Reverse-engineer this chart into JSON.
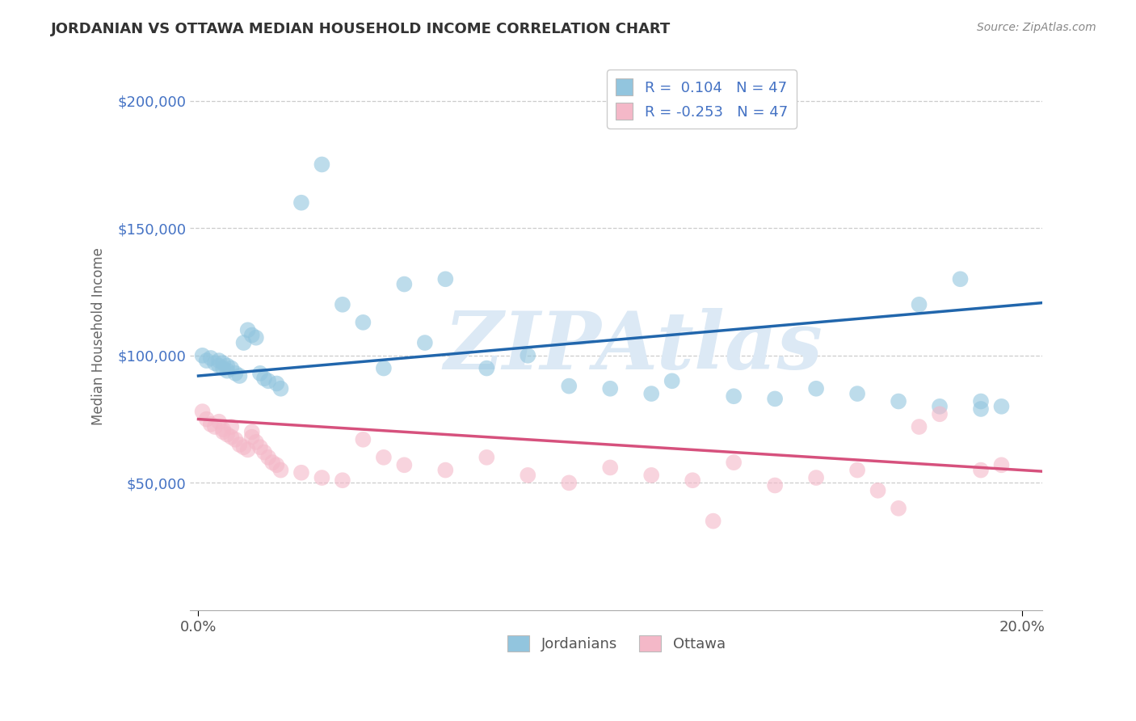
{
  "title": "JORDANIAN VS OTTAWA MEDIAN HOUSEHOLD INCOME CORRELATION CHART",
  "source": "Source: ZipAtlas.com",
  "ylabel": "Median Household Income",
  "xlim": [
    -0.002,
    0.205
  ],
  "ylim": [
    0,
    215000
  ],
  "xticks": [
    0.0,
    0.2
  ],
  "xticklabels": [
    "0.0%",
    "20.0%"
  ],
  "yticks": [
    50000,
    100000,
    150000,
    200000
  ],
  "yticklabels": [
    "$50,000",
    "$100,000",
    "$150,000",
    "$200,000"
  ],
  "r_jordanian": 0.104,
  "r_ottawa": -0.253,
  "n": 47,
  "blue_color": "#92c5de",
  "pink_color": "#f4b8c8",
  "trend_blue": "#2166ac",
  "trend_pink": "#d6517d",
  "ytick_color": "#4472c4",
  "watermark": "ZIPAtlas",
  "watermark_color": "#dce9f5",
  "background_color": "#ffffff",
  "grid_color": "#cccccc",
  "blue_trend_intercept": 92000,
  "blue_trend_slope": 140000,
  "pink_trend_intercept": 75000,
  "pink_trend_slope": -100000,
  "blue_scatter_x": [
    0.001,
    0.002,
    0.003,
    0.004,
    0.005,
    0.005,
    0.006,
    0.006,
    0.007,
    0.007,
    0.008,
    0.009,
    0.01,
    0.011,
    0.012,
    0.013,
    0.014,
    0.015,
    0.016,
    0.017,
    0.019,
    0.02,
    0.025,
    0.03,
    0.035,
    0.04,
    0.045,
    0.05,
    0.055,
    0.06,
    0.07,
    0.08,
    0.09,
    0.1,
    0.11,
    0.115,
    0.13,
    0.14,
    0.15,
    0.16,
    0.17,
    0.18,
    0.185,
    0.19,
    0.195,
    0.19,
    0.175
  ],
  "blue_scatter_y": [
    100000,
    98000,
    99000,
    97000,
    96000,
    98000,
    95000,
    97000,
    96000,
    94000,
    95000,
    93000,
    92000,
    105000,
    110000,
    108000,
    107000,
    93000,
    91000,
    90000,
    89000,
    87000,
    160000,
    175000,
    120000,
    113000,
    95000,
    128000,
    105000,
    130000,
    95000,
    100000,
    88000,
    87000,
    85000,
    90000,
    84000,
    83000,
    87000,
    85000,
    82000,
    80000,
    130000,
    82000,
    80000,
    79000,
    120000
  ],
  "pink_scatter_x": [
    0.001,
    0.002,
    0.003,
    0.004,
    0.005,
    0.006,
    0.006,
    0.007,
    0.008,
    0.008,
    0.009,
    0.01,
    0.011,
    0.012,
    0.013,
    0.013,
    0.014,
    0.015,
    0.016,
    0.017,
    0.018,
    0.019,
    0.02,
    0.025,
    0.03,
    0.035,
    0.04,
    0.045,
    0.05,
    0.06,
    0.07,
    0.08,
    0.09,
    0.1,
    0.11,
    0.12,
    0.13,
    0.14,
    0.15,
    0.16,
    0.165,
    0.17,
    0.175,
    0.18,
    0.19,
    0.195,
    0.125
  ],
  "pink_scatter_y": [
    78000,
    75000,
    73000,
    72000,
    74000,
    71000,
    70000,
    69000,
    72000,
    68000,
    67000,
    65000,
    64000,
    63000,
    70000,
    68000,
    66000,
    64000,
    62000,
    60000,
    58000,
    57000,
    55000,
    54000,
    52000,
    51000,
    67000,
    60000,
    57000,
    55000,
    60000,
    53000,
    50000,
    56000,
    53000,
    51000,
    58000,
    49000,
    52000,
    55000,
    47000,
    40000,
    72000,
    77000,
    55000,
    57000,
    35000
  ]
}
